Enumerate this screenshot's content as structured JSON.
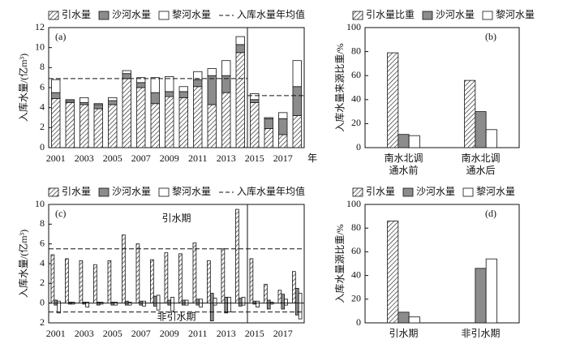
{
  "chart_data": [
    {
      "type": "stacked_bar",
      "panel": "(a)",
      "ylabel": "入库水量/(亿m³)",
      "xlabel": "年",
      "categories": [
        "2001",
        null,
        "2003",
        null,
        "2005",
        null,
        "2007",
        null,
        "2009",
        null,
        "2011",
        null,
        "2013",
        null,
        "2015",
        null,
        "2017",
        null
      ],
      "series": [
        {
          "name": "引水量",
          "color": "#ffffff",
          "hatch": true,
          "values": [
            4.9,
            4.5,
            4.3,
            3.9,
            4.3,
            6.9,
            6.0,
            4.4,
            5.1,
            5.0,
            6.1,
            4.3,
            5.5,
            9.5,
            4.5,
            1.9,
            1.3,
            3.2
          ]
        },
        {
          "name": "沙河水量",
          "color": "#8c8c8c",
          "values": [
            0.6,
            0.2,
            0.2,
            0.4,
            0.4,
            0.5,
            0.5,
            1.1,
            0.5,
            0.6,
            0.7,
            2.9,
            1.7,
            0.8,
            0.3,
            1.0,
            1.6,
            2.9
          ]
        },
        {
          "name": "黎河水量",
          "color": "#ffffff",
          "values": [
            1.3,
            0.1,
            0.5,
            0.1,
            0.3,
            0.3,
            0.5,
            1.5,
            1.5,
            0.5,
            0.8,
            0.7,
            1.5,
            0.8,
            0.6,
            0.1,
            0.6,
            2.6
          ]
        }
      ],
      "mean_line": {
        "name": "入库水量年均值",
        "values": [
          6.9,
          5.2
        ],
        "spans": [
          14,
          4
        ]
      },
      "divider_index": 14,
      "ylim": [
        0,
        12
      ],
      "yticks": [
        0,
        2,
        4,
        6,
        8,
        10,
        12
      ]
    },
    {
      "type": "grouped_bar",
      "panel": "(b)",
      "ylabel": "入库水量来源比重/%",
      "categories": [
        [
          "南水北调",
          "通水前"
        ],
        [
          "南水北调",
          "通水后"
        ]
      ],
      "series": [
        {
          "name": "引水量比重",
          "color": "#ffffff",
          "hatch": true,
          "values": [
            79,
            56
          ]
        },
        {
          "name": "沙河水量",
          "color": "#8c8c8c",
          "values": [
            11,
            30
          ]
        },
        {
          "name": "黎河水量",
          "color": "#ffffff",
          "values": [
            10,
            15
          ]
        }
      ],
      "ylim": [
        0,
        100
      ],
      "yticks": [
        0,
        20,
        40,
        60,
        80,
        100
      ]
    },
    {
      "type": "diverging_bar",
      "panel": "(c)",
      "ylabel": "入库水量/(亿m³)",
      "annotations": [
        "引水期",
        "非引水期"
      ],
      "categories": [
        "2001",
        null,
        "2003",
        null,
        "2005",
        null,
        "2007",
        null,
        "2009",
        null,
        "2011",
        null,
        "2013",
        null,
        "2015",
        null,
        "2017",
        null
      ],
      "series": [
        {
          "name": "引水量",
          "color": "#ffffff",
          "hatch": true,
          "values": [
            4.9,
            4.5,
            4.3,
            3.9,
            4.3,
            6.9,
            6.0,
            4.4,
            5.1,
            5.0,
            6.1,
            4.3,
            5.5,
            9.5,
            4.5,
            1.9,
            1.3,
            3.2
          ]
        },
        {
          "name": "沙河水量",
          "color": "#8c8c8c",
          "values": [
            0.3,
            0.1,
            0.1,
            0.1,
            0.1,
            0.2,
            0.2,
            0.7,
            0.3,
            0.3,
            0.4,
            1.0,
            0.6,
            0.5,
            0.2,
            0.3,
            0.9,
            1.5
          ],
          "values_non": [
            -0.2,
            -0.1,
            -0.1,
            -0.2,
            -0.2,
            -0.2,
            -0.2,
            -0.3,
            -0.2,
            -0.2,
            -0.2,
            -1.8,
            -1.0,
            -0.3,
            -0.1,
            -0.6,
            -0.6,
            -1.2
          ]
        },
        {
          "name": "黎河水量",
          "color": "#ffffff",
          "values": [
            0.2,
            0.1,
            0.1,
            0.1,
            0.1,
            0.1,
            0.2,
            0.8,
            0.6,
            0.3,
            0.4,
            0.5,
            0.6,
            0.6,
            0.2,
            0.1,
            0.4,
            1.0
          ],
          "values_non": [
            -1.0,
            -0.1,
            -0.4,
            -0.1,
            -0.2,
            -0.2,
            -0.3,
            -0.7,
            -0.8,
            -0.2,
            -0.4,
            -0.2,
            -0.9,
            -0.2,
            -0.4,
            -0.1,
            -0.2,
            -1.6
          ]
        }
      ],
      "mean_line": {
        "name": "入库水量年均值",
        "values": [
          5.5,
          -0.9
        ]
      },
      "divider_index": 14,
      "ylim": [
        -2,
        10
      ],
      "yticks": [
        {
          "value": -2,
          "label": "2"
        },
        0,
        2,
        4,
        6,
        8,
        10
      ]
    },
    {
      "type": "grouped_bar",
      "panel": "(d)",
      "ylabel": "入库水量源比重/%",
      "categories": [
        [
          "引水期"
        ],
        [
          "非引水期"
        ]
      ],
      "series": [
        {
          "name": "引水量",
          "color": "#ffffff",
          "hatch": true,
          "values": [
            86,
            0
          ]
        },
        {
          "name": "沙河水量",
          "color": "#8c8c8c",
          "values": [
            9,
            46
          ]
        },
        {
          "name": "黎河水量",
          "color": "#ffffff",
          "values": [
            5,
            54
          ]
        }
      ],
      "ylim": [
        0,
        100
      ],
      "yticks": [
        0,
        20,
        40,
        60,
        80,
        100
      ]
    }
  ]
}
